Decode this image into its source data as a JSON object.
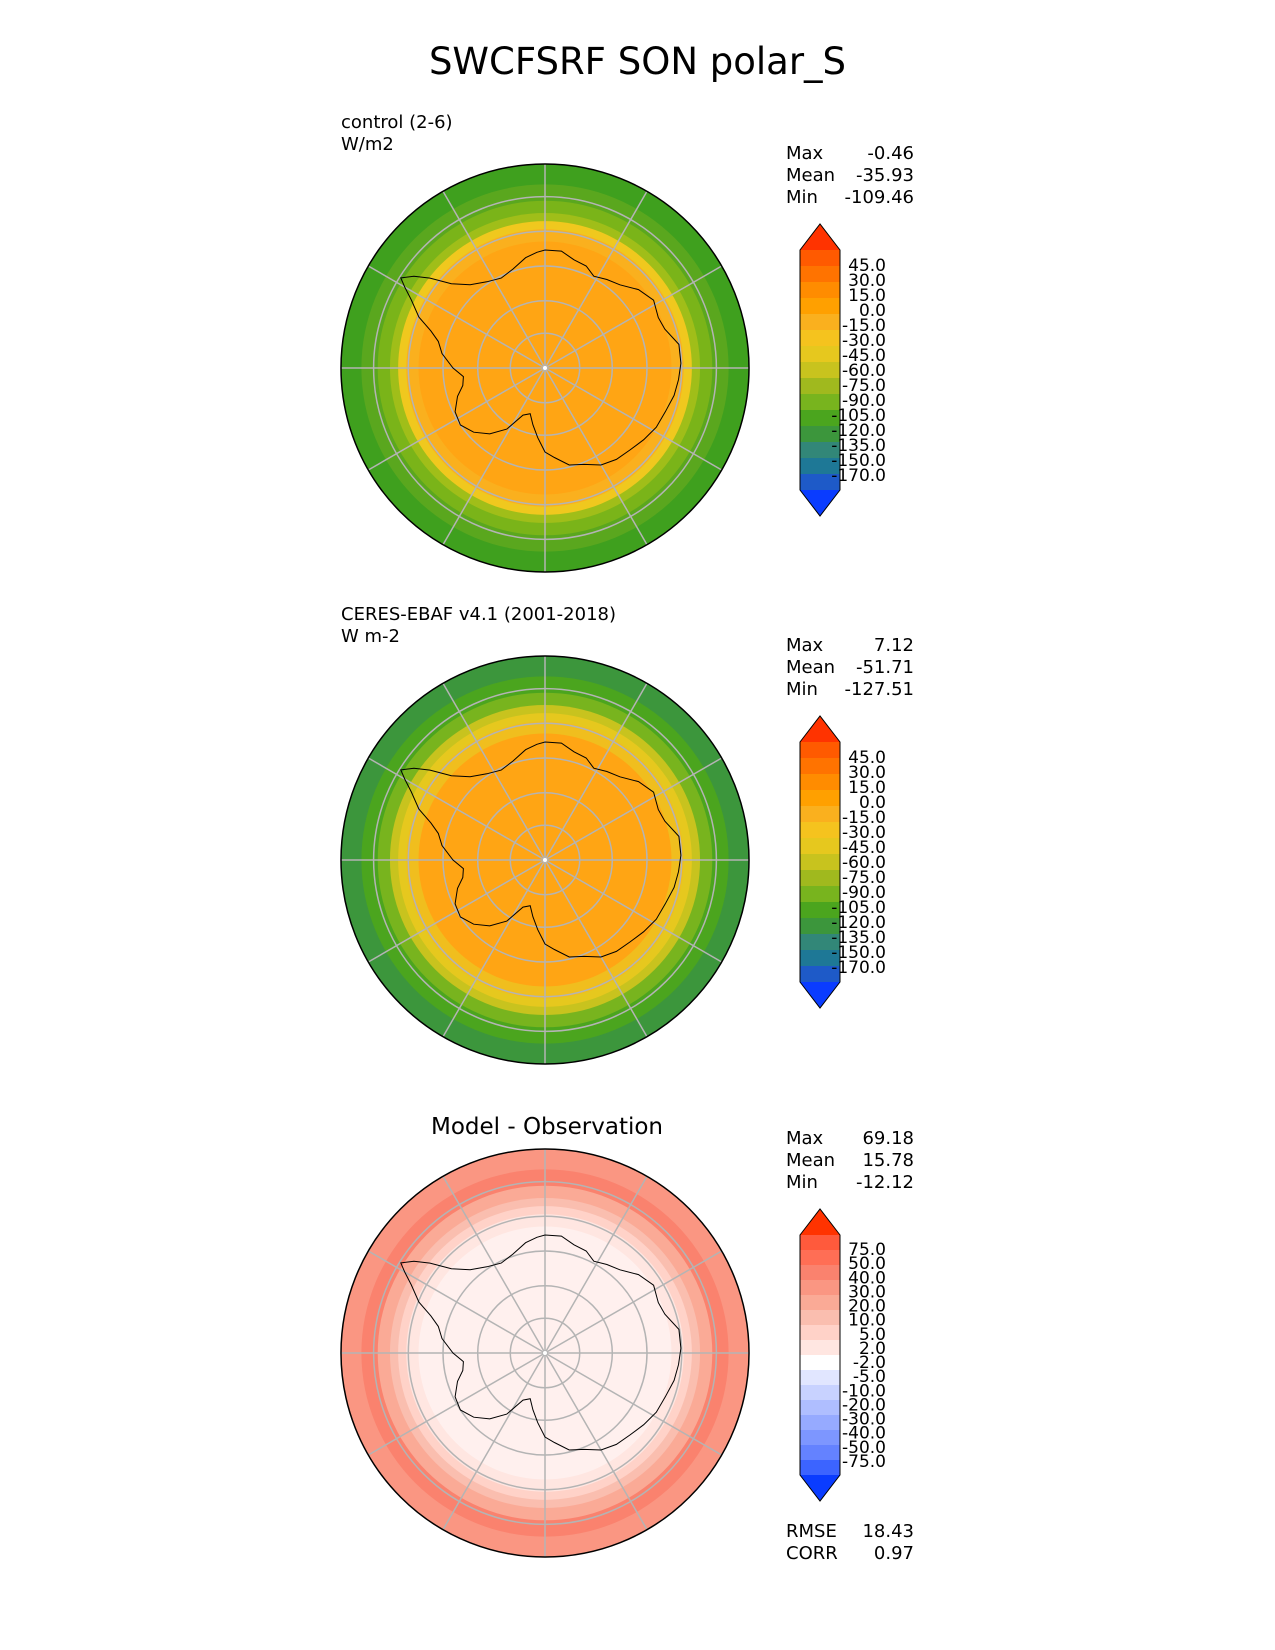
{
  "title": "SWCFSRF SON polar_S",
  "panels": [
    {
      "id": "control",
      "label_line1": "control (2-6)",
      "label_line2": "W/m2",
      "stats": [
        {
          "label": "Max",
          "value": "-0.46"
        },
        {
          "label": "Mean",
          "value": "-35.93"
        },
        {
          "label": "Min",
          "value": "-109.46"
        }
      ],
      "colorbar": {
        "levels": [
          "45.0",
          "30.0",
          "15.0",
          "0.0",
          "-15.0",
          "-30.0",
          "-45.0",
          "-60.0",
          "-75.0",
          "-90.0",
          "-105.0",
          "-120.0",
          "-135.0",
          "-150.0",
          "-170.0"
        ],
        "colors": [
          "#ff3300",
          "#ff5a00",
          "#ff7300",
          "#ff8c00",
          "#ffa000",
          "#fab01e",
          "#f5c31e",
          "#e6c81e",
          "#c8c31e",
          "#a0b91e",
          "#78b41e",
          "#4ba51e",
          "#3c963c",
          "#328778",
          "#1e7896",
          "#1e5ac8",
          "#0a3cff"
        ]
      },
      "map": {
        "rings": [
          "#3fa01e",
          "#5aa71e",
          "#7ab419",
          "#a0be19",
          "#f0c81e",
          "#fab01e",
          "#ffa514"
        ]
      }
    },
    {
      "id": "obs",
      "label_line1": "CERES-EBAF v4.1 (2001-2018)",
      "label_line2": "W m-2",
      "stats": [
        {
          "label": "Max",
          "value": "7.12"
        },
        {
          "label": "Mean",
          "value": "-51.71"
        },
        {
          "label": "Min",
          "value": "-127.51"
        }
      ],
      "colorbar": {
        "levels": [
          "45.0",
          "30.0",
          "15.0",
          "0.0",
          "-15.0",
          "-30.0",
          "-45.0",
          "-60.0",
          "-75.0",
          "-90.0",
          "-105.0",
          "-120.0",
          "-135.0",
          "-150.0",
          "-170.0"
        ],
        "colors": [
          "#ff3300",
          "#ff5a00",
          "#ff7300",
          "#ff8c00",
          "#ffa000",
          "#fab01e",
          "#f5c31e",
          "#e6c81e",
          "#c8c31e",
          "#a0b91e",
          "#78b41e",
          "#4ba51e",
          "#3c963c",
          "#328778",
          "#1e7896",
          "#1e5ac8",
          "#0a3cff"
        ]
      },
      "map": {
        "rings": [
          "#3c963c",
          "#4ba51e",
          "#78b41e",
          "#c8c31e",
          "#e6c81e",
          "#f0be1e",
          "#ffa514"
        ]
      }
    },
    {
      "id": "diff",
      "title": "Model - Observation",
      "stats": [
        {
          "label": "Max",
          "value": "69.18"
        },
        {
          "label": "Mean",
          "value": "15.78"
        },
        {
          "label": "Min",
          "value": "-12.12"
        }
      ],
      "colorbar": {
        "levels": [
          "75.0",
          "50.0",
          "40.0",
          "30.0",
          "20.0",
          "10.0",
          "5.0",
          "2.0",
          "-2.0",
          "-5.0",
          "-10.0",
          "-20.0",
          "-30.0",
          "-40.0",
          "-50.0",
          "-75.0"
        ],
        "colors": [
          "#ff3300",
          "#ff5a3c",
          "#ff6e55",
          "#fa826e",
          "#fa9682",
          "#faaa96",
          "#fabeaf",
          "#ffd2c8",
          "#ffe6e1",
          "#ffffff",
          "#e1e6ff",
          "#c8d2ff",
          "#afbeff",
          "#96aaff",
          "#7d96ff",
          "#6482ff",
          "#3c64ff",
          "#0a3cff"
        ]
      },
      "map": {
        "rings": [
          "#fa9682",
          "#fa826e",
          "#faaa96",
          "#fabeaf",
          "#ffd2c8",
          "#ffe6e1",
          "#fff0ee"
        ]
      },
      "metrics": [
        {
          "label": "RMSE",
          "value": "18.43"
        },
        {
          "label": "CORR",
          "value": "0.97"
        }
      ]
    }
  ],
  "chart_data": [
    {
      "type": "heatmap",
      "title": "control (2-6)",
      "units": "W/m2",
      "projection": "south polar stereographic",
      "stats": {
        "max": -0.46,
        "mean": -35.93,
        "min": -109.46
      },
      "contour_levels": [
        -170,
        -150,
        -135,
        -120,
        -105,
        -90,
        -75,
        -60,
        -45,
        -30,
        -15,
        0,
        15,
        30,
        45
      ]
    },
    {
      "type": "heatmap",
      "title": "CERES-EBAF v4.1 (2001-2018)",
      "units": "W m-2",
      "projection": "south polar stereographic",
      "stats": {
        "max": 7.12,
        "mean": -51.71,
        "min": -127.51
      },
      "contour_levels": [
        -170,
        -150,
        -135,
        -120,
        -105,
        -90,
        -75,
        -60,
        -45,
        -30,
        -15,
        0,
        15,
        30,
        45
      ]
    },
    {
      "type": "heatmap",
      "title": "Model - Observation",
      "projection": "south polar stereographic",
      "stats": {
        "max": 69.18,
        "mean": 15.78,
        "min": -12.12
      },
      "metrics": {
        "rmse": 18.43,
        "corr": 0.97
      },
      "contour_levels": [
        -75,
        -50,
        -40,
        -30,
        -20,
        -10,
        -5,
        -2,
        2,
        5,
        10,
        20,
        30,
        40,
        50,
        75
      ]
    }
  ]
}
